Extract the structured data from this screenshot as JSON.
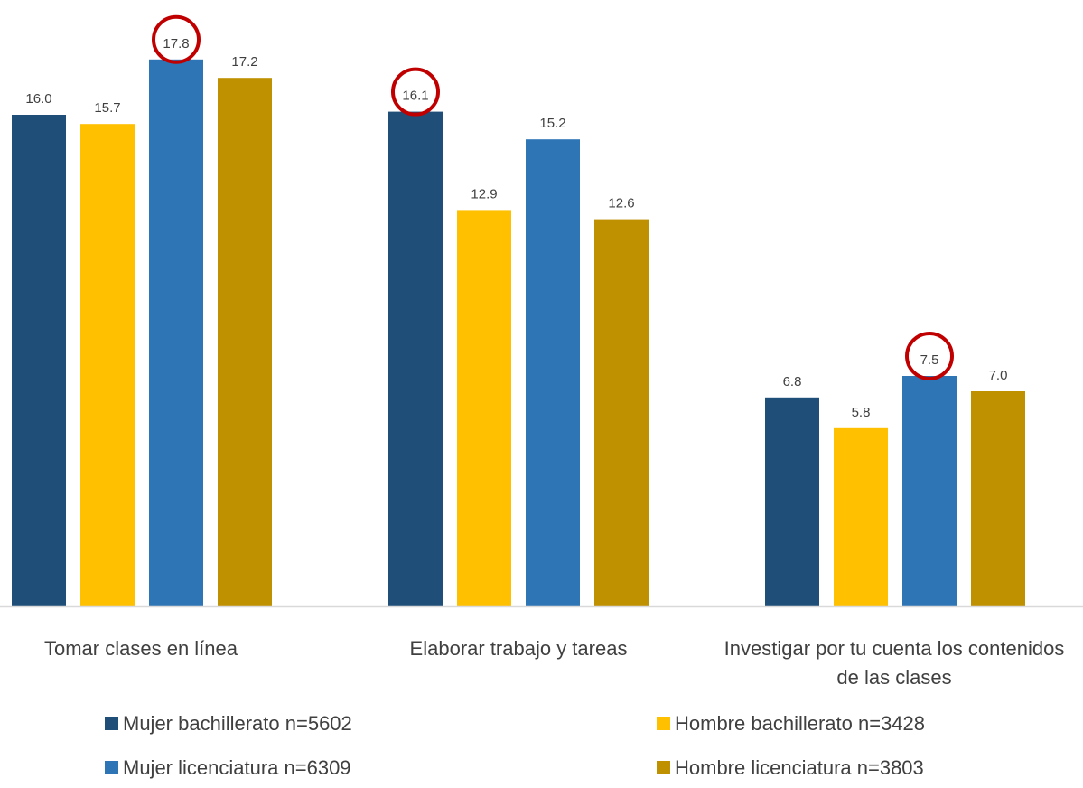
{
  "chart_data": {
    "type": "bar",
    "title": "",
    "xlabel": "",
    "ylabel": "",
    "ylim": [
      0,
      19
    ],
    "grid": false,
    "legend_position": "bottom",
    "categories": [
      [
        "Tomar clases en línea"
      ],
      [
        "Elaborar trabajo y tareas"
      ],
      [
        "Investigar por tu cuenta los contenidos",
        "de las clases"
      ]
    ],
    "series": [
      {
        "name": "Mujer bachillerato n=5602",
        "color": "#1F4E79",
        "values": [
          16.0,
          16.1,
          6.8
        ],
        "labels": [
          "16.0",
          "16.1",
          "6.8"
        ]
      },
      {
        "name": "Hombre bachillerato n=3428",
        "color": "#FFC000",
        "values": [
          15.7,
          12.9,
          5.8
        ],
        "labels": [
          "15.7",
          "12.9",
          "5.8"
        ]
      },
      {
        "name": "Mujer licenciatura n=6309",
        "color": "#2E75B6",
        "values": [
          17.8,
          15.2,
          7.5
        ],
        "labels": [
          "17.8",
          "15.2",
          "7.5"
        ]
      },
      {
        "name": "Hombre licenciatura n=3803",
        "color": "#BF9000",
        "values": [
          17.2,
          12.6,
          7.0
        ],
        "labels": [
          "17.2",
          "12.6",
          "7.0"
        ]
      }
    ],
    "highlighted": [
      {
        "series": 2,
        "category": 0
      },
      {
        "series": 0,
        "category": 1
      },
      {
        "series": 2,
        "category": 2
      }
    ],
    "highlight_color": "#C00000",
    "axis_color": "#D9D9D9"
  }
}
